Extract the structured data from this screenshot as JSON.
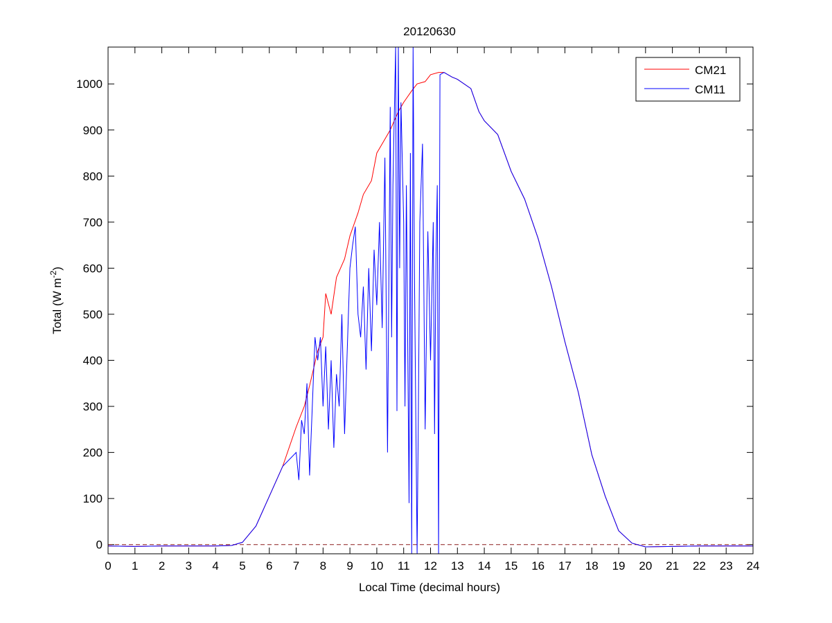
{
  "chart_data": {
    "type": "line",
    "title": "20120630",
    "xlabel": "Local Time (decimal hours)",
    "ylabel": "Total (W m",
    "ylabel_sup": "-2",
    "ylabel_end": ")",
    "xlim": [
      0,
      24
    ],
    "ylim": [
      -20,
      1080
    ],
    "xticks": [
      0,
      1,
      2,
      3,
      4,
      5,
      6,
      7,
      8,
      9,
      10,
      11,
      12,
      13,
      14,
      15,
      16,
      17,
      18,
      19,
      20,
      21,
      22,
      23,
      24
    ],
    "yticks": [
      0,
      100,
      200,
      300,
      400,
      500,
      600,
      700,
      800,
      900,
      1000
    ],
    "grid": false,
    "legend_position": "top-right",
    "reference_line": {
      "y": 0,
      "style": "dashed",
      "color": "#8b1a1a"
    },
    "series": [
      {
        "name": "CM21",
        "color": "#ff0000",
        "points": [
          [
            0,
            -3
          ],
          [
            1,
            -4
          ],
          [
            2,
            -3
          ],
          [
            3,
            -3
          ],
          [
            4,
            -3
          ],
          [
            4.6,
            -2
          ],
          [
            5,
            5
          ],
          [
            5.5,
            40
          ],
          [
            6,
            105
          ],
          [
            6.5,
            170
          ],
          [
            7,
            255
          ],
          [
            7.3,
            300
          ],
          [
            7.5,
            345
          ],
          [
            7.8,
            420
          ],
          [
            8,
            450
          ],
          [
            8.1,
            545
          ],
          [
            8.3,
            500
          ],
          [
            8.5,
            580
          ],
          [
            8.8,
            620
          ],
          [
            9,
            670
          ],
          [
            9.3,
            720
          ],
          [
            9.5,
            760
          ],
          [
            9.8,
            790
          ],
          [
            10,
            850
          ],
          [
            10.2,
            870
          ],
          [
            10.5,
            900
          ],
          [
            10.8,
            940
          ],
          [
            11,
            960
          ],
          [
            11.3,
            985
          ],
          [
            11.5,
            1000
          ],
          [
            11.8,
            1005
          ],
          [
            12,
            1020
          ],
          [
            12.3,
            1025
          ],
          [
            12.5,
            1025
          ],
          [
            12.8,
            1015
          ],
          [
            13,
            1010
          ],
          [
            13.5,
            990
          ],
          [
            13.8,
            940
          ],
          [
            14,
            920
          ],
          [
            14.5,
            890
          ],
          [
            15,
            810
          ],
          [
            15.5,
            750
          ],
          [
            16,
            665
          ],
          [
            16.5,
            560
          ],
          [
            17,
            440
          ],
          [
            17.5,
            330
          ],
          [
            18,
            195
          ],
          [
            18.5,
            105
          ],
          [
            19,
            30
          ],
          [
            19.5,
            3
          ],
          [
            20,
            -5
          ],
          [
            21,
            -4
          ],
          [
            22,
            -3
          ],
          [
            23,
            -3
          ],
          [
            24,
            -3
          ]
        ]
      },
      {
        "name": "CM11",
        "color": "#0000ff",
        "points": [
          [
            0,
            -3
          ],
          [
            1,
            -4
          ],
          [
            2,
            -3
          ],
          [
            3,
            -3
          ],
          [
            4,
            -3
          ],
          [
            4.6,
            -2
          ],
          [
            5,
            5
          ],
          [
            5.5,
            40
          ],
          [
            6,
            105
          ],
          [
            6.5,
            170
          ],
          [
            7,
            200
          ],
          [
            7.1,
            140
          ],
          [
            7.2,
            270
          ],
          [
            7.3,
            240
          ],
          [
            7.4,
            350
          ],
          [
            7.5,
            150
          ],
          [
            7.6,
            300
          ],
          [
            7.7,
            450
          ],
          [
            7.8,
            400
          ],
          [
            7.9,
            450
          ],
          [
            8,
            300
          ],
          [
            8.1,
            430
          ],
          [
            8.2,
            250
          ],
          [
            8.3,
            400
          ],
          [
            8.4,
            210
          ],
          [
            8.5,
            370
          ],
          [
            8.6,
            300
          ],
          [
            8.7,
            500
          ],
          [
            8.8,
            240
          ],
          [
            8.9,
            420
          ],
          [
            9,
            600
          ],
          [
            9.1,
            650
          ],
          [
            9.2,
            690
          ],
          [
            9.3,
            500
          ],
          [
            9.4,
            450
          ],
          [
            9.5,
            560
          ],
          [
            9.6,
            380
          ],
          [
            9.7,
            600
          ],
          [
            9.8,
            420
          ],
          [
            9.9,
            640
          ],
          [
            10,
            520
          ],
          [
            10.1,
            700
          ],
          [
            10.2,
            470
          ],
          [
            10.3,
            840
          ],
          [
            10.4,
            200
          ],
          [
            10.5,
            950
          ],
          [
            10.55,
            450
          ],
          [
            10.6,
            780
          ],
          [
            10.7,
            1080
          ],
          [
            10.75,
            290
          ],
          [
            10.8,
            1080
          ],
          [
            10.85,
            600
          ],
          [
            10.9,
            960
          ],
          [
            11,
            700
          ],
          [
            11.05,
            300
          ],
          [
            11.1,
            780
          ],
          [
            11.2,
            90
          ],
          [
            11.25,
            850
          ],
          [
            11.3,
            -20
          ],
          [
            11.35,
            1080
          ],
          [
            11.4,
            600
          ],
          [
            11.5,
            -20
          ],
          [
            11.55,
            300
          ],
          [
            11.6,
            700
          ],
          [
            11.7,
            870
          ],
          [
            11.8,
            250
          ],
          [
            11.9,
            680
          ],
          [
            12,
            400
          ],
          [
            12.1,
            700
          ],
          [
            12.15,
            240
          ],
          [
            12.2,
            620
          ],
          [
            12.25,
            780
          ],
          [
            12.3,
            -20
          ],
          [
            12.35,
            1020
          ],
          [
            12.5,
            1025
          ],
          [
            12.8,
            1015
          ],
          [
            13,
            1010
          ],
          [
            13.5,
            990
          ],
          [
            13.8,
            940
          ],
          [
            14,
            920
          ],
          [
            14.5,
            890
          ],
          [
            15,
            810
          ],
          [
            15.5,
            750
          ],
          [
            16,
            665
          ],
          [
            16.5,
            560
          ],
          [
            17,
            440
          ],
          [
            17.5,
            330
          ],
          [
            18,
            195
          ],
          [
            18.5,
            105
          ],
          [
            19,
            30
          ],
          [
            19.5,
            3
          ],
          [
            20,
            -5
          ],
          [
            21,
            -4
          ],
          [
            22,
            -3
          ],
          [
            23,
            -3
          ],
          [
            24,
            -3
          ]
        ]
      }
    ]
  }
}
